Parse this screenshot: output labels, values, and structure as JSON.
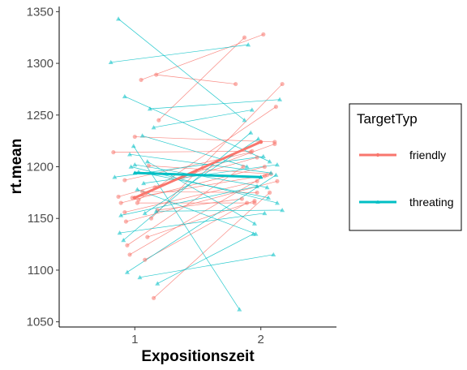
{
  "chart_data": {
    "type": "line",
    "title": "",
    "xlabel": "Expositionszeit",
    "ylabel": "rt.mean",
    "x_categories": [
      "1",
      "2"
    ],
    "ylim": [
      1045,
      1355
    ],
    "y_ticks": [
      1050,
      1100,
      1150,
      1200,
      1250,
      1300,
      1350
    ],
    "grid": false,
    "legend": {
      "title": "TargetTyp",
      "position": "right"
    },
    "series": [
      {
        "name": "friendly",
        "color": "#f8766d",
        "marker": "circle",
        "mean_line": [
          1170,
          1224
        ],
        "subjects": [
          [
            0.83,
            1214,
            1.93,
            1215
          ],
          [
            0.87,
            1171,
            1.97,
            1209
          ],
          [
            0.89,
            1165,
            2.03,
            1200
          ],
          [
            0.92,
            1187,
            1.92,
            1214
          ],
          [
            0.92,
            1156,
            1.97,
            1186
          ],
          [
            0.93,
            1147,
            2.13,
            1186
          ],
          [
            0.94,
            1124,
            1.86,
            1200
          ],
          [
            0.96,
            1115,
            2.03,
            1191
          ],
          [
            0.98,
            1170,
            2.05,
            1192
          ],
          [
            1.0,
            1229,
            2.11,
            1224
          ],
          [
            1.02,
            1165,
            1.95,
            1165
          ],
          [
            1.05,
            1284,
            2.02,
            1328
          ],
          [
            1.06,
            1176,
            1.97,
            1175
          ],
          [
            1.08,
            1110,
            1.89,
            1165
          ],
          [
            1.1,
            1132,
            1.95,
            1167
          ],
          [
            1.11,
            1201,
            2.08,
            1193
          ],
          [
            1.13,
            1150,
            2.17,
            1280
          ],
          [
            1.15,
            1073,
            2.07,
            1175
          ],
          [
            1.16,
            1180,
            2.11,
            1222
          ],
          [
            1.17,
            1289,
            1.8,
            1280
          ],
          [
            1.18,
            1158,
            1.85,
            1169
          ],
          [
            1.19,
            1245,
            1.87,
            1325
          ],
          [
            1.03,
            1168,
            2.12,
            1258
          ]
        ]
      },
      {
        "name": "threating",
        "color": "#00bfc4",
        "marker": "triangle",
        "mean_line": [
          1194,
          1190
        ],
        "subjects": [
          [
            0.81,
            1301,
            1.9,
            1318
          ],
          [
            0.84,
            1190,
            2.02,
            1210
          ],
          [
            0.87,
            1343,
            1.87,
            1245
          ],
          [
            0.88,
            1136,
            2.03,
            1155
          ],
          [
            0.89,
            1153,
            1.97,
            1181
          ],
          [
            0.91,
            1129,
            1.92,
            1233
          ],
          [
            0.92,
            1268,
            2.07,
            1205
          ],
          [
            0.94,
            1098,
            2.12,
            1192
          ],
          [
            0.96,
            1212,
            2.08,
            1194
          ],
          [
            0.97,
            1200,
            2.13,
            1165
          ],
          [
            0.99,
            1220,
            1.83,
            1062
          ],
          [
            1.0,
            1202,
            2.05,
            1180
          ],
          [
            1.02,
            1178,
            1.96,
            1135
          ],
          [
            1.04,
            1093,
            2.1,
            1115
          ],
          [
            1.06,
            1230,
            1.89,
            1200
          ],
          [
            1.07,
            1184,
            2.13,
            1202
          ],
          [
            1.1,
            1205,
            1.95,
            1145
          ],
          [
            1.12,
            1256,
            2.15,
            1265
          ],
          [
            1.15,
            1238,
            1.93,
            1255
          ],
          [
            1.17,
            1157,
            2.17,
            1158
          ],
          [
            1.18,
            1087,
            1.94,
            1135
          ],
          [
            1.08,
            1155,
            1.98,
            1227
          ],
          [
            1.03,
            1195,
            2.06,
            1170
          ]
        ]
      }
    ]
  }
}
